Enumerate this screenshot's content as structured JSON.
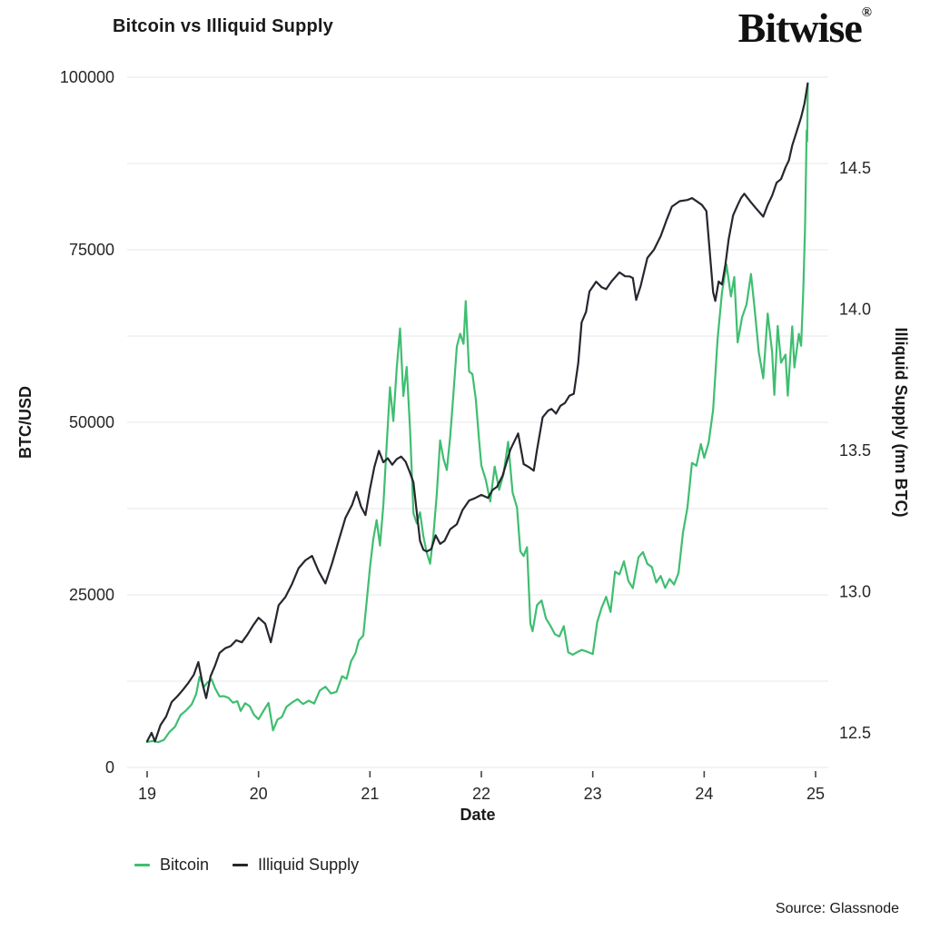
{
  "header": {
    "title": "Bitcoin vs Illiquid Supply",
    "logo": "Bitwise",
    "logo_reg": "®"
  },
  "legend": {
    "items": [
      {
        "label": "Bitcoin",
        "color": "#3fbe70"
      },
      {
        "label": "Illiquid Supply",
        "color": "#26262e"
      }
    ]
  },
  "footer": {
    "source": "Source: Glassnode"
  },
  "chart_data": {
    "type": "line",
    "title": "Bitcoin vs Illiquid Supply",
    "grid": "horizontal, every 12500 of left axis, light gray",
    "legend_position": "bottom-left",
    "x_axis": {
      "label": "Date",
      "ticks": [
        19,
        20,
        21,
        22,
        23,
        24,
        25
      ],
      "range": [
        18.82,
        25.12
      ]
    },
    "y_left": {
      "label": "BTC/USD",
      "ticks": [
        0,
        25000,
        50000,
        75000,
        100000
      ],
      "range": [
        0,
        100000
      ],
      "grid_step": 12500
    },
    "y_right": {
      "label": "Illiquid Supply (mn BTC)",
      "ticks": [
        12.5,
        13.0,
        13.5,
        14.0,
        14.5
      ],
      "range": [
        12.4,
        14.9
      ]
    },
    "series": [
      {
        "name": "Bitcoin",
        "axis": "left",
        "color": "#3fbe70",
        "points": [
          [
            19.0,
            3700
          ],
          [
            19.05,
            3750
          ],
          [
            19.1,
            3800
          ],
          [
            19.15,
            4100
          ],
          [
            19.2,
            5300
          ],
          [
            19.25,
            5900
          ],
          [
            19.3,
            7600
          ],
          [
            19.35,
            8200
          ],
          [
            19.4,
            9000
          ],
          [
            19.44,
            10500
          ],
          [
            19.47,
            12900
          ],
          [
            19.51,
            11800
          ],
          [
            19.54,
            12200
          ],
          [
            19.58,
            12700
          ],
          [
            19.61,
            11600
          ],
          [
            19.65,
            10500
          ],
          [
            19.69,
            10300
          ],
          [
            19.73,
            10100
          ],
          [
            19.77,
            9500
          ],
          [
            19.81,
            9700
          ],
          [
            19.84,
            8300
          ],
          [
            19.88,
            9200
          ],
          [
            19.92,
            8800
          ],
          [
            19.96,
            7400
          ],
          [
            20.0,
            7200
          ],
          [
            20.05,
            8300
          ],
          [
            20.09,
            9400
          ],
          [
            20.13,
            5200
          ],
          [
            20.17,
            6900
          ],
          [
            20.21,
            7300
          ],
          [
            20.25,
            8900
          ],
          [
            20.3,
            9300
          ],
          [
            20.35,
            9800
          ],
          [
            20.4,
            9300
          ],
          [
            20.45,
            9600
          ],
          [
            20.5,
            9100
          ],
          [
            20.55,
            10900
          ],
          [
            20.6,
            11500
          ],
          [
            20.65,
            10800
          ],
          [
            20.7,
            11000
          ],
          [
            20.75,
            13000
          ],
          [
            20.79,
            13000
          ],
          [
            20.83,
            15500
          ],
          [
            20.87,
            16500
          ],
          [
            20.9,
            18500
          ],
          [
            20.94,
            19100
          ],
          [
            20.97,
            24000
          ],
          [
            21.0,
            29000
          ],
          [
            21.03,
            33000
          ],
          [
            21.06,
            36000
          ],
          [
            21.09,
            32000
          ],
          [
            21.12,
            38000
          ],
          [
            21.15,
            46500
          ],
          [
            21.18,
            55000
          ],
          [
            21.21,
            50000
          ],
          [
            21.24,
            58000
          ],
          [
            21.27,
            63500
          ],
          [
            21.3,
            54000
          ],
          [
            21.33,
            58000
          ],
          [
            21.36,
            49000
          ],
          [
            21.39,
            37000
          ],
          [
            21.42,
            35500
          ],
          [
            21.45,
            37000
          ],
          [
            21.48,
            33500
          ],
          [
            21.51,
            31000
          ],
          [
            21.54,
            29700
          ],
          [
            21.57,
            34000
          ],
          [
            21.6,
            39500
          ],
          [
            21.63,
            47400
          ],
          [
            21.66,
            44500
          ],
          [
            21.69,
            43000
          ],
          [
            21.72,
            48000
          ],
          [
            21.75,
            54000
          ],
          [
            21.78,
            61000
          ],
          [
            21.81,
            63000
          ],
          [
            21.84,
            61500
          ],
          [
            21.86,
            67500
          ],
          [
            21.89,
            57500
          ],
          [
            21.92,
            57000
          ],
          [
            21.95,
            53500
          ],
          [
            21.98,
            47500
          ],
          [
            22.0,
            43700
          ],
          [
            22.04,
            41500
          ],
          [
            22.08,
            38500
          ],
          [
            22.12,
            43800
          ],
          [
            22.16,
            40000
          ],
          [
            22.2,
            42500
          ],
          [
            22.24,
            47400
          ],
          [
            22.28,
            39700
          ],
          [
            22.32,
            37700
          ],
          [
            22.35,
            31300
          ],
          [
            22.38,
            30500
          ],
          [
            22.41,
            31800
          ],
          [
            22.44,
            21000
          ],
          [
            22.46,
            19500
          ],
          [
            22.5,
            23400
          ],
          [
            22.54,
            24100
          ],
          [
            22.58,
            21400
          ],
          [
            22.62,
            20400
          ],
          [
            22.66,
            19400
          ],
          [
            22.7,
            19100
          ],
          [
            22.74,
            20300
          ],
          [
            22.78,
            16700
          ],
          [
            22.82,
            16400
          ],
          [
            22.86,
            16800
          ],
          [
            22.9,
            17000
          ],
          [
            22.95,
            16700
          ],
          [
            23.0,
            16600
          ],
          [
            23.04,
            21000
          ],
          [
            23.08,
            23200
          ],
          [
            23.12,
            24800
          ],
          [
            23.16,
            22400
          ],
          [
            23.2,
            28300
          ],
          [
            23.24,
            28000
          ],
          [
            23.28,
            29900
          ],
          [
            23.32,
            27000
          ],
          [
            23.36,
            25900
          ],
          [
            23.41,
            30500
          ],
          [
            23.45,
            31300
          ],
          [
            23.49,
            29300
          ],
          [
            23.53,
            29000
          ],
          [
            23.57,
            26600
          ],
          [
            23.61,
            27600
          ],
          [
            23.65,
            26000
          ],
          [
            23.69,
            27200
          ],
          [
            23.73,
            26500
          ],
          [
            23.77,
            28000
          ],
          [
            23.81,
            34000
          ],
          [
            23.85,
            37500
          ],
          [
            23.89,
            44100
          ],
          [
            23.93,
            43800
          ],
          [
            23.97,
            46700
          ],
          [
            24.0,
            45000
          ],
          [
            24.04,
            47000
          ],
          [
            24.08,
            52000
          ],
          [
            24.12,
            62000
          ],
          [
            24.16,
            69000
          ],
          [
            24.2,
            73000
          ],
          [
            24.24,
            68000
          ],
          [
            24.27,
            71000
          ],
          [
            24.3,
            61600
          ],
          [
            24.34,
            65000
          ],
          [
            24.38,
            67000
          ],
          [
            24.42,
            71300
          ],
          [
            24.45,
            67000
          ],
          [
            24.49,
            60300
          ],
          [
            24.53,
            56300
          ],
          [
            24.57,
            65800
          ],
          [
            24.61,
            60100
          ],
          [
            24.63,
            54200
          ],
          [
            24.66,
            64200
          ],
          [
            24.69,
            58600
          ],
          [
            24.73,
            59600
          ],
          [
            24.75,
            53700
          ],
          [
            24.79,
            63800
          ],
          [
            24.81,
            57900
          ],
          [
            24.85,
            62900
          ],
          [
            24.87,
            60900
          ],
          [
            24.89,
            69000
          ],
          [
            24.905,
            78000
          ],
          [
            24.92,
            92500
          ],
          [
            24.925,
            90500
          ],
          [
            24.93,
            99000
          ]
        ]
      },
      {
        "name": "Illiquid Supply",
        "axis": "right",
        "color": "#26262e",
        "points": [
          [
            19.0,
            12.47
          ],
          [
            19.04,
            12.5
          ],
          [
            19.07,
            12.47
          ],
          [
            19.12,
            12.53
          ],
          [
            19.17,
            12.56
          ],
          [
            19.22,
            12.61
          ],
          [
            19.27,
            12.63
          ],
          [
            19.32,
            12.65
          ],
          [
            19.37,
            12.68
          ],
          [
            19.42,
            12.71
          ],
          [
            19.46,
            12.75
          ],
          [
            19.5,
            12.67
          ],
          [
            19.53,
            12.62
          ],
          [
            19.57,
            12.7
          ],
          [
            19.61,
            12.74
          ],
          [
            19.65,
            12.78
          ],
          [
            19.7,
            12.8
          ],
          [
            19.75,
            12.81
          ],
          [
            19.8,
            12.83
          ],
          [
            19.85,
            12.82
          ],
          [
            19.9,
            12.85
          ],
          [
            19.95,
            12.88
          ],
          [
            20.0,
            12.91
          ],
          [
            20.06,
            12.89
          ],
          [
            20.11,
            12.82
          ],
          [
            20.18,
            12.95
          ],
          [
            20.24,
            12.98
          ],
          [
            20.3,
            13.03
          ],
          [
            20.36,
            13.08
          ],
          [
            20.42,
            13.11
          ],
          [
            20.48,
            13.13
          ],
          [
            20.54,
            13.07
          ],
          [
            20.6,
            13.03
          ],
          [
            20.66,
            13.1
          ],
          [
            20.72,
            13.18
          ],
          [
            20.78,
            13.26
          ],
          [
            20.84,
            13.31
          ],
          [
            20.88,
            13.35
          ],
          [
            20.92,
            13.3
          ],
          [
            20.96,
            13.27
          ],
          [
            21.0,
            13.36
          ],
          [
            21.04,
            13.44
          ],
          [
            21.08,
            13.5
          ],
          [
            21.12,
            13.46
          ],
          [
            21.16,
            13.47
          ],
          [
            21.2,
            13.45
          ],
          [
            21.24,
            13.47
          ],
          [
            21.28,
            13.48
          ],
          [
            21.32,
            13.46
          ],
          [
            21.36,
            13.42
          ],
          [
            21.39,
            13.39
          ],
          [
            21.42,
            13.28
          ],
          [
            21.45,
            13.18
          ],
          [
            21.48,
            13.15
          ],
          [
            21.51,
            13.14
          ],
          [
            21.55,
            13.15
          ],
          [
            21.59,
            13.2
          ],
          [
            21.63,
            13.17
          ],
          [
            21.67,
            13.18
          ],
          [
            21.72,
            13.22
          ],
          [
            21.78,
            13.24
          ],
          [
            21.83,
            13.29
          ],
          [
            21.89,
            13.32
          ],
          [
            21.94,
            13.33
          ],
          [
            22.0,
            13.34
          ],
          [
            22.06,
            13.33
          ],
          [
            22.1,
            13.36
          ],
          [
            22.14,
            13.37
          ],
          [
            22.19,
            13.41
          ],
          [
            22.26,
            13.5
          ],
          [
            22.33,
            13.56
          ],
          [
            22.38,
            13.45
          ],
          [
            22.43,
            13.44
          ],
          [
            22.47,
            13.43
          ],
          [
            22.5,
            13.5
          ],
          [
            22.55,
            13.62
          ],
          [
            22.6,
            13.64
          ],
          [
            22.63,
            13.65
          ],
          [
            22.67,
            13.63
          ],
          [
            22.71,
            13.66
          ],
          [
            22.75,
            13.67
          ],
          [
            22.79,
            13.69
          ],
          [
            22.83,
            13.7
          ],
          [
            22.87,
            13.81
          ],
          [
            22.9,
            13.95
          ],
          [
            22.94,
            13.99
          ],
          [
            22.97,
            14.06
          ],
          [
            23.03,
            14.1
          ],
          [
            23.08,
            14.08
          ],
          [
            23.12,
            14.07
          ],
          [
            23.17,
            14.1
          ],
          [
            23.24,
            14.13
          ],
          [
            23.29,
            14.12
          ],
          [
            23.33,
            14.12
          ],
          [
            23.36,
            14.11
          ],
          [
            23.39,
            14.03
          ],
          [
            23.43,
            14.08
          ],
          [
            23.49,
            14.18
          ],
          [
            23.55,
            14.21
          ],
          [
            23.61,
            14.26
          ],
          [
            23.66,
            14.31
          ],
          [
            23.71,
            14.36
          ],
          [
            23.78,
            14.38
          ],
          [
            23.85,
            14.39
          ],
          [
            23.89,
            14.39
          ],
          [
            23.94,
            14.38
          ],
          [
            23.98,
            14.37
          ],
          [
            24.02,
            14.35
          ],
          [
            24.05,
            14.2
          ],
          [
            24.08,
            14.06
          ],
          [
            24.1,
            14.03
          ],
          [
            24.13,
            14.1
          ],
          [
            24.16,
            14.09
          ],
          [
            24.19,
            14.16
          ],
          [
            24.22,
            14.25
          ],
          [
            24.26,
            14.33
          ],
          [
            24.3,
            14.37
          ],
          [
            24.33,
            14.39
          ],
          [
            24.36,
            14.41
          ],
          [
            24.42,
            14.38
          ],
          [
            24.46,
            14.36
          ],
          [
            24.53,
            14.33
          ],
          [
            24.57,
            14.37
          ],
          [
            24.61,
            14.4
          ],
          [
            24.65,
            14.45
          ],
          [
            24.69,
            14.46
          ],
          [
            24.73,
            14.5
          ],
          [
            24.76,
            14.53
          ],
          [
            24.79,
            14.58
          ],
          [
            24.83,
            14.63
          ],
          [
            24.87,
            14.68
          ],
          [
            24.9,
            14.73
          ],
          [
            24.93,
            14.8
          ]
        ]
      }
    ]
  }
}
